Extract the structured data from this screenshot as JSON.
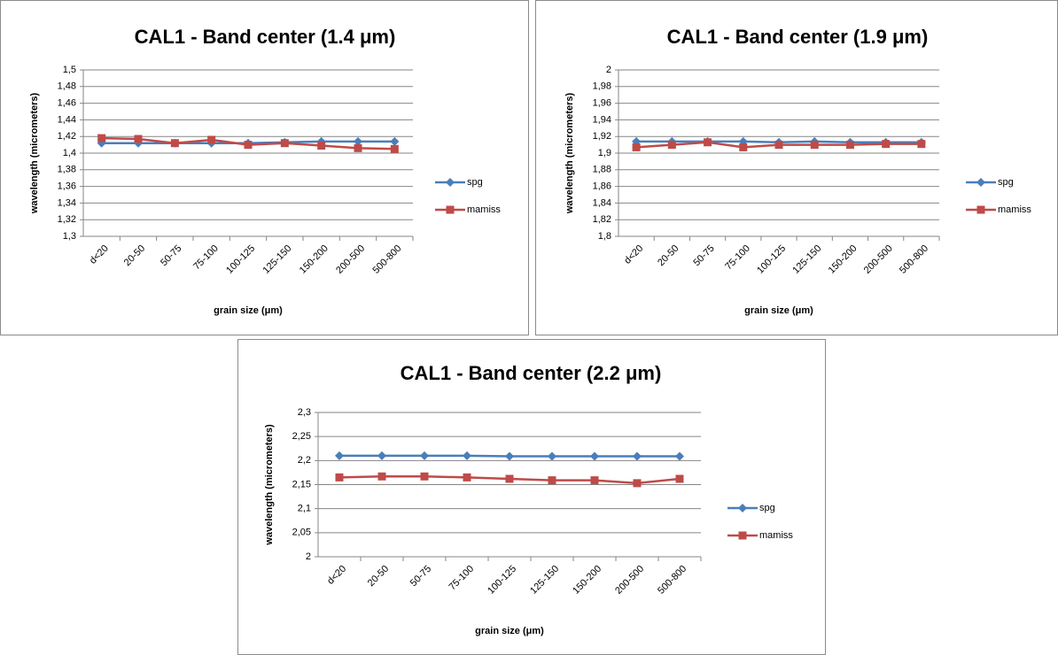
{
  "chart_data": [
    {
      "type": "line",
      "title": "CAL1 - Band center (1.4 μm)",
      "x_label": "grain size (μm)",
      "y_label": "wavelength (micrometers)",
      "categories": [
        "d<20",
        "20-50",
        "50-75",
        "75-100",
        "100-125",
        "125-150",
        "150-200",
        "200-500",
        "500-800"
      ],
      "series": [
        {
          "name": "spg",
          "color": "#4a7ebb",
          "values": [
            1.412,
            1.412,
            1.412,
            1.412,
            1.412,
            1.413,
            1.414,
            1.414,
            1.414
          ]
        },
        {
          "name": "mamiss",
          "color": "#be4b48",
          "values": [
            1.418,
            1.417,
            1.412,
            1.416,
            1.41,
            1.412,
            1.409,
            1.406,
            1.405
          ]
        }
      ],
      "ylim": [
        1.3,
        1.5
      ],
      "yticks": [
        {
          "value": 1.3,
          "label": "1,3"
        },
        {
          "value": 1.32,
          "label": "1,32"
        },
        {
          "value": 1.34,
          "label": "1,34"
        },
        {
          "value": 1.36,
          "label": "1,36"
        },
        {
          "value": 1.38,
          "label": "1,38"
        },
        {
          "value": 1.4,
          "label": "1,4"
        },
        {
          "value": 1.42,
          "label": "1,42"
        },
        {
          "value": 1.44,
          "label": "1,44"
        },
        {
          "value": 1.46,
          "label": "1,46"
        },
        {
          "value": 1.48,
          "label": "1,48"
        },
        {
          "value": 1.5,
          "label": "1,5"
        }
      ],
      "grid": true,
      "legend": "right"
    },
    {
      "type": "line",
      "title": "CAL1 - Band center (1.9 μm)",
      "x_label": "grain size (μm)",
      "y_label": "wavelength (micrometers)",
      "categories": [
        "d<20",
        "20-50",
        "50-75",
        "75-100",
        "100-125",
        "125-150",
        "150-200",
        "200-500",
        "500-800"
      ],
      "series": [
        {
          "name": "spg",
          "color": "#4a7ebb",
          "values": [
            1.914,
            1.914,
            1.914,
            1.914,
            1.913,
            1.914,
            1.913,
            1.913,
            1.913
          ]
        },
        {
          "name": "mamiss",
          "color": "#be4b48",
          "values": [
            1.907,
            1.91,
            1.913,
            1.907,
            1.91,
            1.91,
            1.91,
            1.911,
            1.911
          ]
        }
      ],
      "ylim": [
        1.8,
        2
      ],
      "yticks": [
        {
          "value": 1.8,
          "label": "1,8"
        },
        {
          "value": 1.82,
          "label": "1,82"
        },
        {
          "value": 1.84,
          "label": "1,84"
        },
        {
          "value": 1.86,
          "label": "1,86"
        },
        {
          "value": 1.88,
          "label": "1,88"
        },
        {
          "value": 1.9,
          "label": "1,9"
        },
        {
          "value": 1.92,
          "label": "1,92"
        },
        {
          "value": 1.94,
          "label": "1,94"
        },
        {
          "value": 1.96,
          "label": "1,96"
        },
        {
          "value": 1.98,
          "label": "1,98"
        },
        2
      ],
      "grid": true,
      "legend": "right"
    },
    {
      "type": "line",
      "title": "CAL1 - Band center (2.2 μm)",
      "x_label": "grain size (μm)",
      "y_label": "wavelength (micrometers)",
      "categories": [
        "d<20",
        "20-50",
        "50-75",
        "75-100",
        "100-125",
        "125-150",
        "150-200",
        "200-500",
        "500-800"
      ],
      "series": [
        {
          "name": "spg",
          "color": "#4a7ebb",
          "values": [
            2.21,
            2.21,
            2.21,
            2.21,
            2.209,
            2.209,
            2.209,
            2.209,
            2.209
          ]
        },
        {
          "name": "mamiss",
          "color": "#be4b48",
          "values": [
            2.165,
            2.167,
            2.167,
            2.165,
            2.162,
            2.159,
            2.159,
            2.153,
            2.162
          ]
        }
      ],
      "ylim": [
        2,
        2.3
      ],
      "yticks": [
        2,
        {
          "value": 2.05,
          "label": "2,05"
        },
        {
          "value": 2.1,
          "label": "2,1"
        },
        {
          "value": 2.15,
          "label": "2,15"
        },
        {
          "value": 2.2,
          "label": "2,2"
        },
        {
          "value": 2.25,
          "label": "2,25"
        },
        {
          "value": 2.3,
          "label": "2,3"
        }
      ],
      "grid": true,
      "legend": "right"
    }
  ]
}
